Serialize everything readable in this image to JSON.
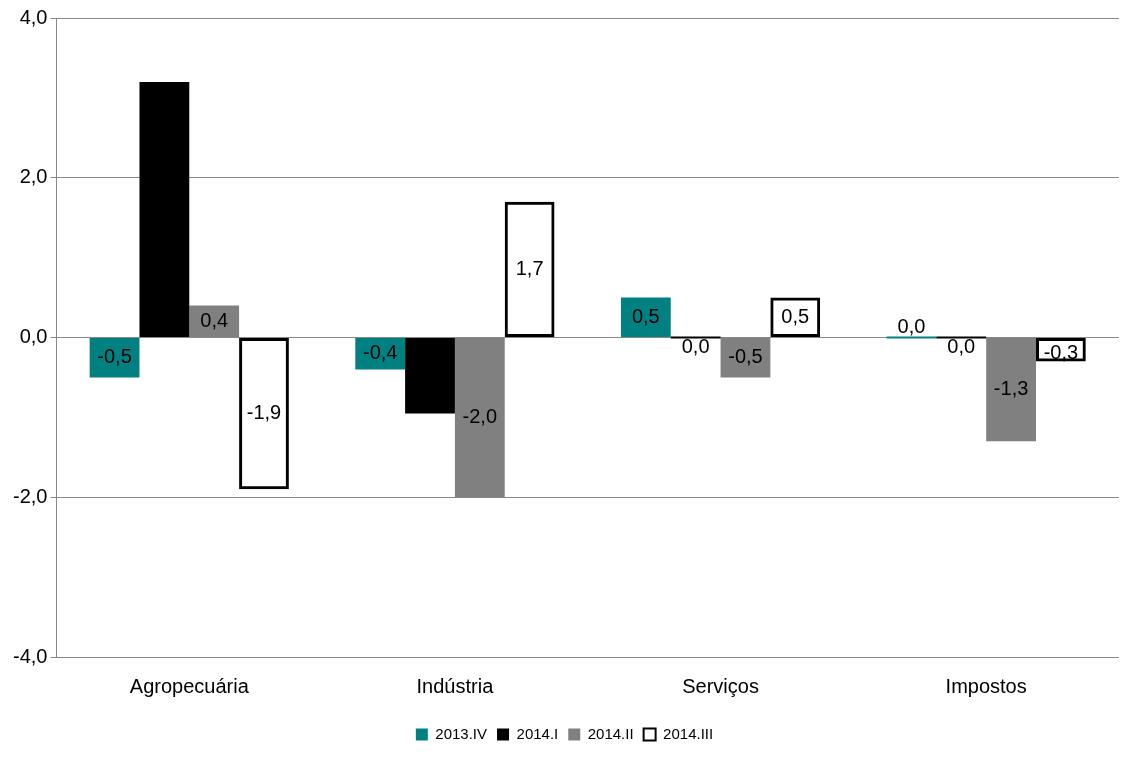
{
  "chart_data": {
    "type": "bar",
    "categories": [
      "Agropecuária",
      "Indústria",
      "Serviços",
      "Impostos"
    ],
    "series": [
      {
        "name": "2013.IV",
        "color": "#008080",
        "values": [
          -0.5,
          -0.4,
          0.5,
          0.0
        ],
        "value_labels": [
          "-0,5",
          "-0,4",
          "0,5",
          "0,0"
        ]
      },
      {
        "name": "2014.I",
        "color": "#000000",
        "values": [
          3.2,
          -0.95,
          0.0,
          0.0
        ],
        "value_labels": [
          null,
          null,
          "0,0",
          "0,0"
        ]
      },
      {
        "name": "2014.II",
        "color": "#808080",
        "values": [
          0.4,
          -2.0,
          -0.5,
          -1.3
        ],
        "value_labels": [
          "0,4",
          "-2,0",
          "-0,5",
          "-1,3"
        ]
      },
      {
        "name": "2014.III",
        "color": "#000000",
        "values": [
          -1.9,
          1.7,
          0.5,
          -0.3
        ],
        "value_labels": [
          "-1,9",
          "1,7",
          "0,5",
          "-0,3"
        ]
      }
    ],
    "ylim": [
      -4,
      4
    ],
    "yticks": [
      {
        "value": -4,
        "label": "-4,0"
      },
      {
        "value": -2,
        "label": "-2,0"
      },
      {
        "value": 0,
        "label": "0,0"
      },
      {
        "value": 2,
        "label": "2,0"
      },
      {
        "value": 4,
        "label": "4,0"
      }
    ],
    "grid": "y",
    "legend": "bottom"
  }
}
